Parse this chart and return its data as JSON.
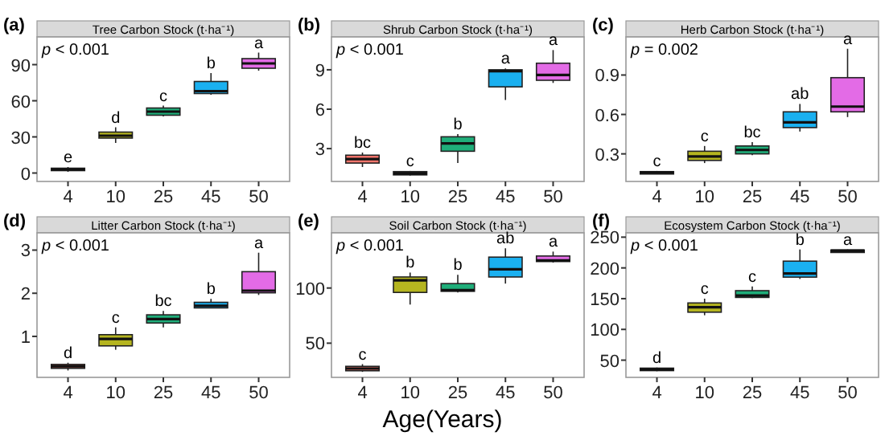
{
  "chart_data": [
    {
      "type": "box",
      "title": "Tree Carbon Stock  (t·ha⁻¹)",
      "categories": [
        "4",
        "10",
        "25",
        "45",
        "50"
      ],
      "colors": [
        "#8b3a2a",
        "#b5b520",
        "#1fae7a",
        "#1ab0f0",
        "#e36be6"
      ],
      "ylim": [
        -7,
        113
      ],
      "yticks": [
        0,
        30,
        60,
        90
      ],
      "boxes": [
        {
          "low": 1,
          "q1": 2,
          "median": 3,
          "q3": 4,
          "high": 5
        },
        {
          "low": 25,
          "q1": 29,
          "median": 31,
          "q3": 34,
          "high": 38
        },
        {
          "low": 47,
          "q1": 48,
          "median": 51,
          "q3": 54,
          "high": 56
        },
        {
          "low": 65,
          "q1": 66,
          "median": 68,
          "q3": 76,
          "high": 83
        },
        {
          "low": 85,
          "q1": 87,
          "median": 91,
          "q3": 95,
          "high": 100
        }
      ],
      "annotations": [
        "(a)",
        "p < 0.001",
        {
          "text": "e",
          "x": "4",
          "y": 5
        },
        {
          "text": "d",
          "x": "10",
          "y": 38
        },
        {
          "text": "c",
          "x": "25",
          "y": 56
        },
        {
          "text": "b",
          "x": "45",
          "y": 83
        },
        {
          "text": "a",
          "x": "50",
          "y": 100
        }
      ]
    },
    {
      "type": "box",
      "title": "Shrub Carbon Stock  (t·ha⁻¹)",
      "categories": [
        "4",
        "10",
        "25",
        "45",
        "50"
      ],
      "colors": [
        "#f8766d",
        "#222222",
        "#1fae7a",
        "#1ab0f0",
        "#e36be6"
      ],
      "ylim": [
        0.5,
        11.5
      ],
      "yticks": [
        3,
        6,
        9
      ],
      "boxes": [
        {
          "low": 1.6,
          "q1": 1.9,
          "median": 2.2,
          "q3": 2.5,
          "high": 2.7
        },
        {
          "low": 0.95,
          "q1": 1.0,
          "median": 1.1,
          "q3": 1.25,
          "high": 1.3
        },
        {
          "low": 1.9,
          "q1": 2.8,
          "median": 3.4,
          "q3": 3.9,
          "high": 4.1
        },
        {
          "low": 6.7,
          "q1": 7.7,
          "median": 8.9,
          "q3": 9.0,
          "high": 9.1
        },
        {
          "low": 8.0,
          "q1": 8.2,
          "median": 8.6,
          "q3": 9.5,
          "high": 10.5
        }
      ],
      "annotations": [
        "(b)",
        "p < 0.001",
        {
          "text": "bc",
          "x": "4",
          "y": 2.7
        },
        {
          "text": "c",
          "x": "10",
          "y": 1.3
        },
        {
          "text": "b",
          "x": "25",
          "y": 4.1
        },
        {
          "text": "a",
          "x": "45",
          "y": 9.1
        },
        {
          "text": "a",
          "x": "50",
          "y": 10.5
        }
      ]
    },
    {
      "type": "box",
      "title": "Herb Carbon Stock  (t·ha⁻¹)",
      "categories": [
        "4",
        "10",
        "25",
        "45",
        "50"
      ],
      "colors": [
        "#222222",
        "#b5b520",
        "#1fae7a",
        "#1ab0f0",
        "#e36be6"
      ],
      "ylim": [
        0.09,
        1.19
      ],
      "yticks": [
        0.3,
        0.6,
        0.9
      ],
      "boxes": [
        {
          "low": 0.15,
          "q1": 0.155,
          "median": 0.16,
          "q3": 0.165,
          "high": 0.17
        },
        {
          "low": 0.23,
          "q1": 0.25,
          "median": 0.28,
          "q3": 0.32,
          "high": 0.36
        },
        {
          "low": 0.29,
          "q1": 0.3,
          "median": 0.33,
          "q3": 0.36,
          "high": 0.39
        },
        {
          "low": 0.47,
          "q1": 0.5,
          "median": 0.54,
          "q3": 0.62,
          "high": 0.68
        },
        {
          "low": 0.58,
          "q1": 0.62,
          "median": 0.66,
          "q3": 0.88,
          "high": 1.1
        }
      ],
      "annotations": [
        "(c)",
        "p = 0.002",
        {
          "text": "c",
          "x": "4",
          "y": 0.17
        },
        {
          "text": "c",
          "x": "10",
          "y": 0.36
        },
        {
          "text": "bc",
          "x": "25",
          "y": 0.39
        },
        {
          "text": "ab",
          "x": "45",
          "y": 0.68
        },
        {
          "text": "a",
          "x": "50",
          "y": 1.1
        }
      ]
    },
    {
      "type": "box",
      "title": "Litter Carbon Stock  (t·ha⁻¹)",
      "categories": [
        "4",
        "10",
        "25",
        "45",
        "50"
      ],
      "colors": [
        "#f8766d",
        "#b5b520",
        "#1fae7a",
        "#1ab0f0",
        "#e36be6"
      ],
      "ylim": [
        0.05,
        3.4
      ],
      "yticks": [
        1,
        2,
        3
      ],
      "boxes": [
        {
          "low": 0.21,
          "q1": 0.26,
          "median": 0.31,
          "q3": 0.35,
          "high": 0.39
        },
        {
          "low": 0.69,
          "q1": 0.78,
          "median": 0.94,
          "q3": 1.04,
          "high": 1.21
        },
        {
          "low": 1.21,
          "q1": 1.31,
          "median": 1.4,
          "q3": 1.5,
          "high": 1.59
        },
        {
          "low": 1.65,
          "q1": 1.66,
          "median": 1.71,
          "q3": 1.79,
          "high": 1.87
        },
        {
          "low": 1.96,
          "q1": 2.01,
          "median": 2.06,
          "q3": 2.5,
          "high": 2.94
        }
      ],
      "annotations": [
        "(d)",
        "p < 0.001",
        {
          "text": "d",
          "x": "4",
          "y": 0.39
        },
        {
          "text": "c",
          "x": "10",
          "y": 1.21
        },
        {
          "text": "bc",
          "x": "25",
          "y": 1.59
        },
        {
          "text": "b",
          "x": "45",
          "y": 1.87
        },
        {
          "text": "a",
          "x": "50",
          "y": 2.94
        }
      ]
    },
    {
      "type": "box",
      "title": "Soil Carbon Stock  (t·ha⁻¹)",
      "xlabel": "Age(Years)",
      "categories": [
        "4",
        "10",
        "25",
        "45",
        "50"
      ],
      "colors": [
        "#f8766d",
        "#b5b520",
        "#1fae7a",
        "#1ab0f0",
        "#e36be6"
      ],
      "ylim": [
        19,
        150
      ],
      "yticks": [
        50,
        100
      ],
      "boxes": [
        {
          "low": 24,
          "q1": 25,
          "median": 27,
          "q3": 29,
          "high": 31
        },
        {
          "low": 85,
          "q1": 96,
          "median": 107,
          "q3": 110,
          "high": 114
        },
        {
          "low": 96,
          "q1": 97,
          "median": 98,
          "q3": 104,
          "high": 112
        },
        {
          "low": 104,
          "q1": 110,
          "median": 117,
          "q3": 128,
          "high": 136
        },
        {
          "low": 123,
          "q1": 124,
          "median": 125,
          "q3": 129,
          "high": 133
        }
      ],
      "annotations": [
        "(e)",
        "p < 0.001",
        {
          "text": "c",
          "x": "4",
          "y": 31
        },
        {
          "text": "b",
          "x": "10",
          "y": 114
        },
        {
          "text": "b",
          "x": "25",
          "y": 112
        },
        {
          "text": "ab",
          "x": "45",
          "y": 136
        },
        {
          "text": "a",
          "x": "50",
          "y": 133
        }
      ]
    },
    {
      "type": "box",
      "title": "Ecosystem Carbon Stock  (t·ha⁻¹)",
      "categories": [
        "4",
        "10",
        "25",
        "45",
        "50"
      ],
      "colors": [
        "#222222",
        "#b5b520",
        "#1fae7a",
        "#1ab0f0",
        "#222222"
      ],
      "ylim": [
        22,
        257
      ],
      "yticks": [
        50,
        100,
        150,
        200,
        250
      ],
      "boxes": [
        {
          "low": 32,
          "q1": 33,
          "median": 35,
          "q3": 37,
          "high": 38
        },
        {
          "low": 123,
          "q1": 128,
          "median": 136,
          "q3": 143,
          "high": 150
        },
        {
          "low": 151,
          "q1": 152,
          "median": 155,
          "q3": 163,
          "high": 170
        },
        {
          "low": 182,
          "q1": 185,
          "median": 191,
          "q3": 211,
          "high": 230
        },
        {
          "low": 226,
          "q1": 227,
          "median": 228,
          "q3": 229,
          "high": 230
        }
      ],
      "annotations": [
        "(f)",
        "p < 0.001",
        {
          "text": "d",
          "x": "4",
          "y": 38
        },
        {
          "text": "c",
          "x": "10",
          "y": 150
        },
        {
          "text": "c",
          "x": "25",
          "y": 170
        },
        {
          "text": "b",
          "x": "45",
          "y": 230
        },
        {
          "text": "a",
          "x": "50",
          "y": 230
        }
      ]
    }
  ]
}
